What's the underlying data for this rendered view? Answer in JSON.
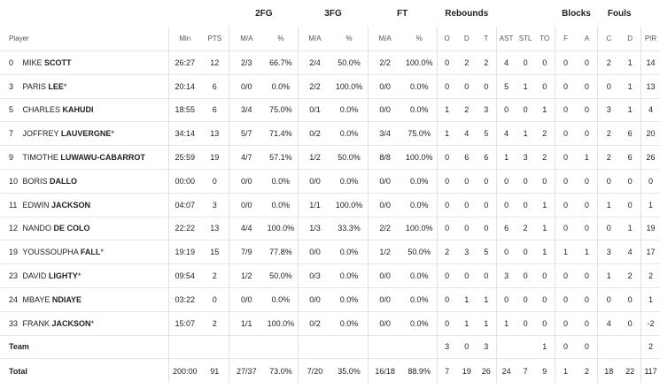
{
  "groups": {
    "fg2": "2FG",
    "fg3": "3FG",
    "ft": "FT",
    "rebounds": "Rebounds",
    "blocks": "Blocks",
    "fouls": "Fouls"
  },
  "columns": {
    "player": "Player",
    "min": "Min",
    "pts": "PTS",
    "ma": "M/A",
    "pct": "%",
    "o": "O",
    "d": "D",
    "t": "T",
    "ast": "AST",
    "stl": "STL",
    "to": "TO",
    "f": "F",
    "a": "A",
    "c": "C",
    "fd": "D",
    "pir": "PIR"
  },
  "rows": [
    {
      "num": "0",
      "first": "MIKE",
      "last": "SCOTT",
      "star": "",
      "min": "26:27",
      "pts": "12",
      "fg2": "2/3",
      "fg2p": "66.7%",
      "fg3": "2/4",
      "fg3p": "50.0%",
      "ft": "2/2",
      "ftp": "100.0%",
      "o": "0",
      "d": "2",
      "t": "2",
      "ast": "4",
      "stl": "0",
      "to": "0",
      "f": "0",
      "a": "0",
      "c": "2",
      "fd": "1",
      "pir": "14"
    },
    {
      "num": "3",
      "first": "PARIS",
      "last": "LEE",
      "star": "*",
      "min": "20:14",
      "pts": "6",
      "fg2": "0/0",
      "fg2p": "0.0%",
      "fg3": "2/2",
      "fg3p": "100.0%",
      "ft": "0/0",
      "ftp": "0.0%",
      "o": "0",
      "d": "0",
      "t": "0",
      "ast": "5",
      "stl": "1",
      "to": "0",
      "f": "0",
      "a": "0",
      "c": "0",
      "fd": "1",
      "pir": "13"
    },
    {
      "num": "5",
      "first": "CHARLES",
      "last": "KAHUDI",
      "star": "",
      "min": "18:55",
      "pts": "6",
      "fg2": "3/4",
      "fg2p": "75.0%",
      "fg3": "0/1",
      "fg3p": "0.0%",
      "ft": "0/0",
      "ftp": "0.0%",
      "o": "1",
      "d": "2",
      "t": "3",
      "ast": "0",
      "stl": "0",
      "to": "1",
      "f": "0",
      "a": "0",
      "c": "3",
      "fd": "1",
      "pir": "4"
    },
    {
      "num": "7",
      "first": "JOFFREY",
      "last": "LAUVERGNE",
      "star": "*",
      "min": "34:14",
      "pts": "13",
      "fg2": "5/7",
      "fg2p": "71.4%",
      "fg3": "0/2",
      "fg3p": "0.0%",
      "ft": "3/4",
      "ftp": "75.0%",
      "o": "1",
      "d": "4",
      "t": "5",
      "ast": "4",
      "stl": "1",
      "to": "2",
      "f": "0",
      "a": "0",
      "c": "2",
      "fd": "6",
      "pir": "20"
    },
    {
      "num": "9",
      "first": "TIMOTHE",
      "last": "LUWAWU-CABARROT",
      "star": "",
      "min": "25:59",
      "pts": "19",
      "fg2": "4/7",
      "fg2p": "57.1%",
      "fg3": "1/2",
      "fg3p": "50.0%",
      "ft": "8/8",
      "ftp": "100.0%",
      "o": "0",
      "d": "6",
      "t": "6",
      "ast": "1",
      "stl": "3",
      "to": "2",
      "f": "0",
      "a": "1",
      "c": "2",
      "fd": "6",
      "pir": "26"
    },
    {
      "num": "10",
      "first": "BORIS",
      "last": "DALLO",
      "star": "",
      "min": "00:00",
      "pts": "0",
      "fg2": "0/0",
      "fg2p": "0.0%",
      "fg3": "0/0",
      "fg3p": "0.0%",
      "ft": "0/0",
      "ftp": "0.0%",
      "o": "0",
      "d": "0",
      "t": "0",
      "ast": "0",
      "stl": "0",
      "to": "0",
      "f": "0",
      "a": "0",
      "c": "0",
      "fd": "0",
      "pir": "0"
    },
    {
      "num": "11",
      "first": "EDWIN",
      "last": "JACKSON",
      "star": "",
      "min": "04:07",
      "pts": "3",
      "fg2": "0/0",
      "fg2p": "0.0%",
      "fg3": "1/1",
      "fg3p": "100.0%",
      "ft": "0/0",
      "ftp": "0.0%",
      "o": "0",
      "d": "0",
      "t": "0",
      "ast": "0",
      "stl": "0",
      "to": "1",
      "f": "0",
      "a": "0",
      "c": "1",
      "fd": "0",
      "pir": "1"
    },
    {
      "num": "12",
      "first": "NANDO",
      "last": "DE COLO",
      "star": "",
      "min": "22:22",
      "pts": "13",
      "fg2": "4/4",
      "fg2p": "100.0%",
      "fg3": "1/3",
      "fg3p": "33.3%",
      "ft": "2/2",
      "ftp": "100.0%",
      "o": "0",
      "d": "0",
      "t": "0",
      "ast": "6",
      "stl": "2",
      "to": "1",
      "f": "0",
      "a": "0",
      "c": "0",
      "fd": "1",
      "pir": "19"
    },
    {
      "num": "19",
      "first": "YOUSSOUPHA",
      "last": "FALL",
      "star": "*",
      "min": "19:19",
      "pts": "15",
      "fg2": "7/9",
      "fg2p": "77.8%",
      "fg3": "0/0",
      "fg3p": "0.0%",
      "ft": "1/2",
      "ftp": "50.0%",
      "o": "2",
      "d": "3",
      "t": "5",
      "ast": "0",
      "stl": "0",
      "to": "1",
      "f": "1",
      "a": "1",
      "c": "3",
      "fd": "4",
      "pir": "17"
    },
    {
      "num": "23",
      "first": "DAVID",
      "last": "LIGHTY",
      "star": "*",
      "min": "09:54",
      "pts": "2",
      "fg2": "1/2",
      "fg2p": "50.0%",
      "fg3": "0/3",
      "fg3p": "0.0%",
      "ft": "0/0",
      "ftp": "0.0%",
      "o": "0",
      "d": "0",
      "t": "0",
      "ast": "3",
      "stl": "0",
      "to": "0",
      "f": "0",
      "a": "0",
      "c": "1",
      "fd": "2",
      "pir": "2"
    },
    {
      "num": "24",
      "first": "MBAYE",
      "last": "NDIAYE",
      "star": "",
      "min": "03:22",
      "pts": "0",
      "fg2": "0/0",
      "fg2p": "0.0%",
      "fg3": "0/0",
      "fg3p": "0.0%",
      "ft": "0/0",
      "ftp": "0.0%",
      "o": "0",
      "d": "1",
      "t": "1",
      "ast": "0",
      "stl": "0",
      "to": "0",
      "f": "0",
      "a": "0",
      "c": "0",
      "fd": "0",
      "pir": "1"
    },
    {
      "num": "33",
      "first": "FRANK",
      "last": "JACKSON",
      "star": "*",
      "min": "15:07",
      "pts": "2",
      "fg2": "1/1",
      "fg2p": "100.0%",
      "fg3": "0/2",
      "fg3p": "0.0%",
      "ft": "0/0",
      "ftp": "0.0%",
      "o": "0",
      "d": "1",
      "t": "1",
      "ast": "1",
      "stl": "0",
      "to": "0",
      "f": "0",
      "a": "0",
      "c": "4",
      "fd": "0",
      "pir": "-2"
    }
  ],
  "team": {
    "label": "Team",
    "o": "3",
    "d": "0",
    "t": "3",
    "ast": "",
    "stl": "",
    "to": "1",
    "f": "0",
    "a": "0",
    "c": "",
    "fd": "",
    "pir": "2"
  },
  "total": {
    "label": "Total",
    "min": "200:00",
    "pts": "91",
    "fg2": "27/37",
    "fg2p": "73.0%",
    "fg3": "7/20",
    "fg3p": "35.0%",
    "ft": "16/18",
    "ftp": "88.9%",
    "o": "7",
    "d": "19",
    "t": "26",
    "ast": "24",
    "stl": "7",
    "to": "9",
    "f": "1",
    "a": "2",
    "c": "18",
    "fd": "22",
    "pir": "117"
  }
}
